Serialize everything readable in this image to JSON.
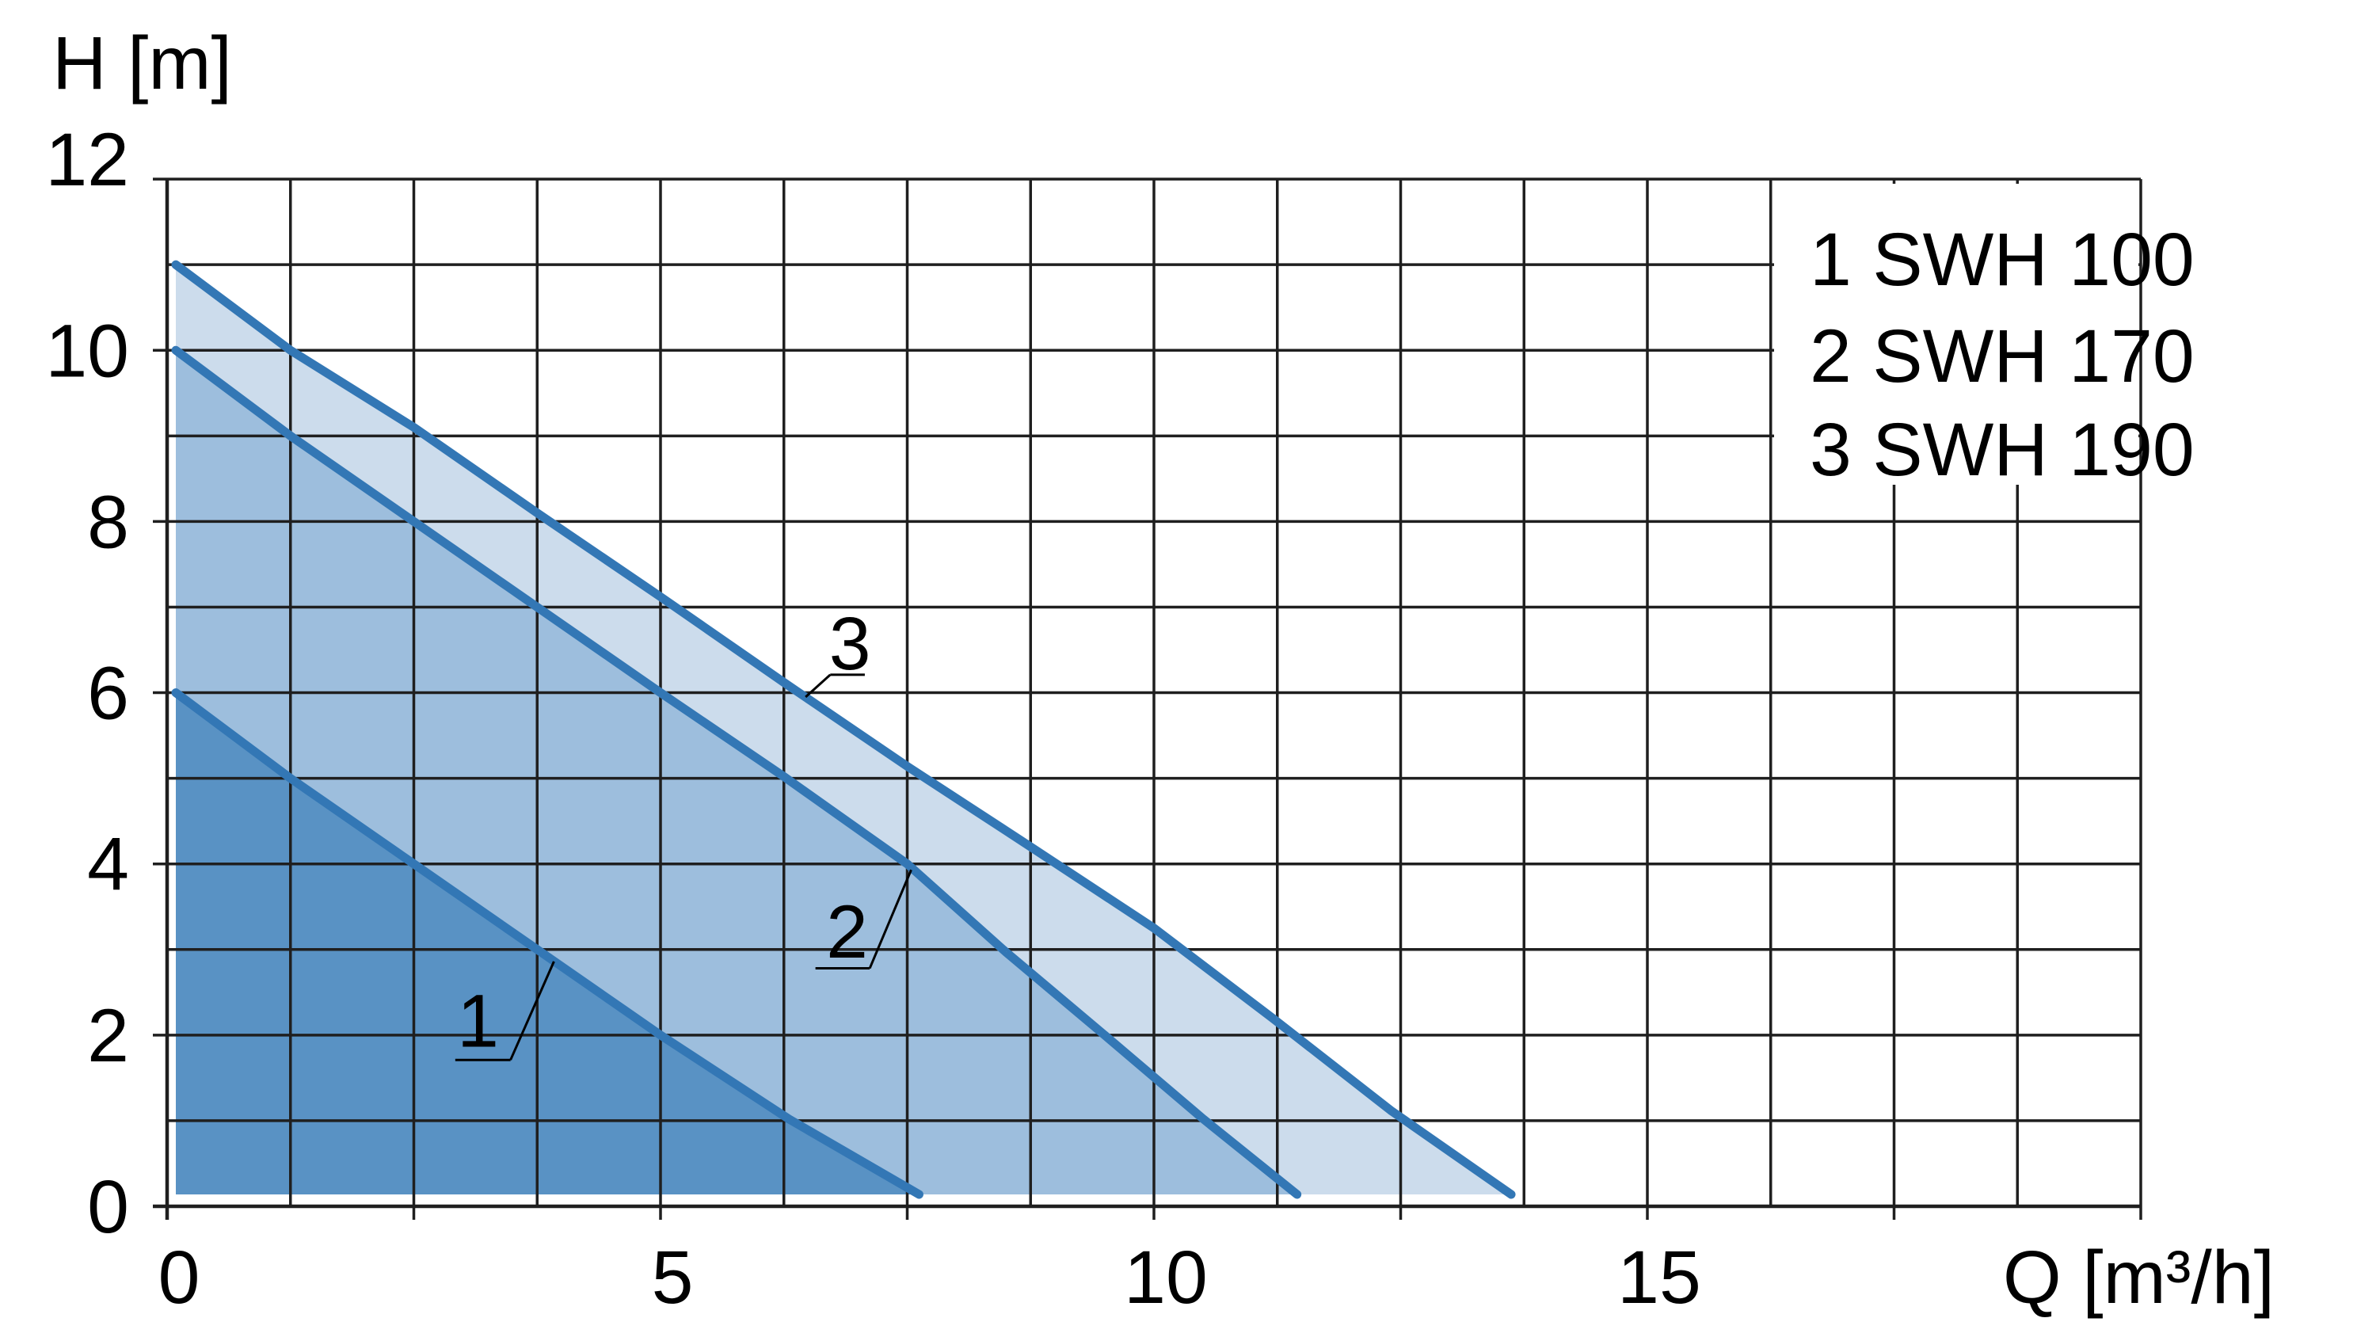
{
  "colors": {
    "background": "#ffffff",
    "grid_line": "#1f1f1f",
    "axis_line": "#1f1f1f",
    "text": "#000000",
    "curve_stroke": "#3377b5",
    "fill_dark": "#5992c4",
    "fill_medium": "#9dbedd",
    "fill_light": "#ccdcec",
    "legend_box": "#ffffff"
  },
  "legend": {
    "items": [
      "1 SWH 100",
      "2 SWH 170",
      "3 SWH 190"
    ]
  },
  "chart_data": {
    "type": "area",
    "title": "",
    "x_axis": {
      "label": "Q [m³/h]",
      "range": [
        0,
        20
      ],
      "gridline_step": 1.25,
      "tick_step": 2.5,
      "tick_labels": [
        0,
        5,
        10,
        15
      ]
    },
    "y_axis": {
      "label": "H [m]",
      "range": [
        0,
        12
      ],
      "gridline_step": 1,
      "tick_labels": [
        0,
        2,
        4,
        6,
        8,
        10,
        12
      ]
    },
    "grid": true,
    "legend_position": "top-right",
    "series": [
      {
        "id": "3",
        "name": "SWH 190",
        "points": [
          [
            0,
            11
          ],
          [
            1.25,
            10
          ],
          [
            2.5,
            9.1
          ],
          [
            3.75,
            8.1
          ],
          [
            5,
            7.12
          ],
          [
            6.25,
            6.12
          ],
          [
            7.5,
            5.14
          ],
          [
            8.75,
            4.2
          ],
          [
            10,
            3.25
          ],
          [
            11.2,
            2.2
          ],
          [
            12.4,
            1.12
          ],
          [
            13.62,
            0
          ]
        ]
      },
      {
        "id": "2",
        "name": "SWH 170",
        "points": [
          [
            0,
            10
          ],
          [
            1.25,
            9
          ],
          [
            2.5,
            8
          ],
          [
            3.75,
            7
          ],
          [
            5,
            6
          ],
          [
            6.25,
            5.02
          ],
          [
            7.5,
            4
          ],
          [
            8.5,
            2.97
          ],
          [
            9.5,
            2
          ],
          [
            10.5,
            1.02
          ],
          [
            11.45,
            0
          ]
        ]
      },
      {
        "id": "1",
        "name": "SWH 100",
        "points": [
          [
            0,
            6
          ],
          [
            1.25,
            5
          ],
          [
            2.5,
            4
          ],
          [
            3.75,
            3
          ],
          [
            5,
            2
          ],
          [
            6.3,
            1.02
          ],
          [
            7.62,
            0
          ]
        ]
      }
    ],
    "annotations": [
      {
        "text": "1",
        "x": 3.15,
        "y": 2.17,
        "segments": [
          [
            2.92,
            1.71,
            3.48,
            1.71
          ],
          [
            3.48,
            1.71,
            3.92,
            2.86
          ]
        ]
      },
      {
        "text": "2",
        "x": 6.89,
        "y": 3.21,
        "segments": [
          [
            6.57,
            2.78,
            7.12,
            2.78
          ],
          [
            7.12,
            2.78,
            7.54,
            3.93
          ]
        ]
      },
      {
        "text": "3",
        "x": 6.92,
        "y": 6.58,
        "segments": [
          [
            6.72,
            6.21,
            7.07,
            6.21
          ],
          [
            6.72,
            6.21,
            6.47,
            5.95
          ]
        ]
      }
    ]
  }
}
